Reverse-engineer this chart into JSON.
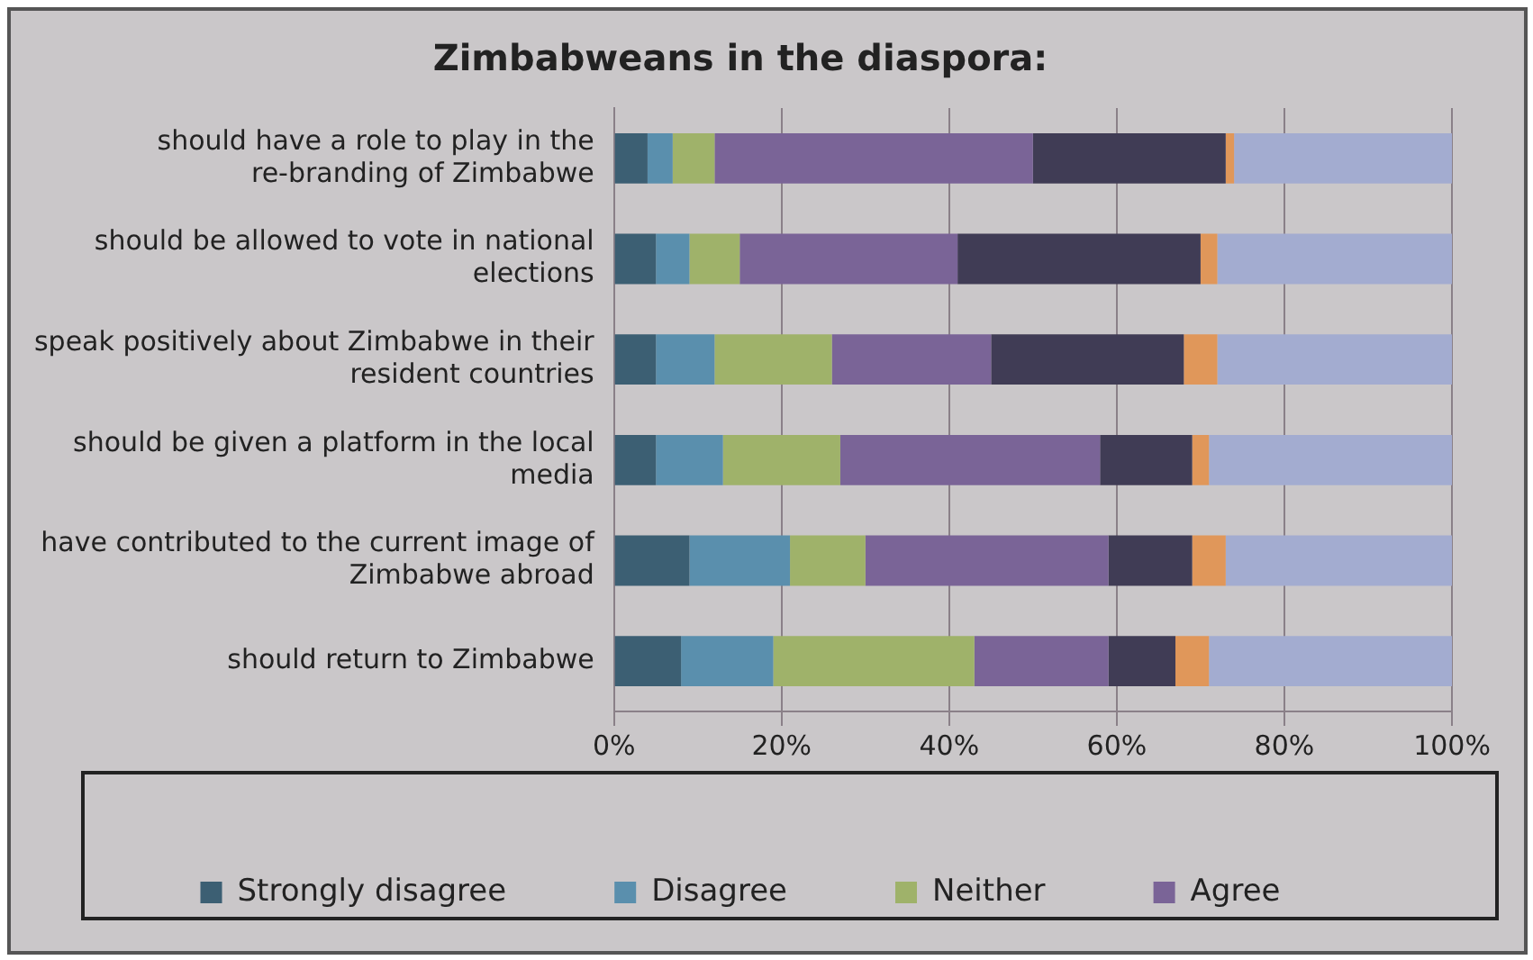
{
  "chart_data": {
    "type": "bar",
    "orientation": "horizontal",
    "stacked": true,
    "title": "Zimbabweans in the diaspora:",
    "categories": [
      "should have a role to play in the re-branding of Zimbabwe",
      "should be allowed to vote in national elections",
      "speak positively about Zimbabwe in their resident countries",
      "should be given a platform in the local media",
      "have contributed to the current image of Zimbabwe abroad",
      "should return to Zimbabwe"
    ],
    "series": [
      {
        "name": "Strongly disagree",
        "color": "#3c5f73",
        "values": [
          4,
          5,
          5,
          5,
          9,
          8
        ]
      },
      {
        "name": "Disagree",
        "color": "#5a8fad",
        "values": [
          3,
          4,
          7,
          8,
          12,
          11
        ]
      },
      {
        "name": "Neither",
        "color": "#9fb26a",
        "values": [
          5,
          6,
          14,
          14,
          9,
          24
        ]
      },
      {
        "name": "Agree",
        "color": "#7a6497",
        "values": [
          38,
          26,
          19,
          31,
          29,
          16
        ]
      },
      {
        "color": "#403c55",
        "values": [
          23,
          29,
          23,
          11,
          10,
          8
        ]
      },
      {
        "color": "#e0975a",
        "values": [
          1,
          2,
          4,
          2,
          4,
          4
        ]
      },
      {
        "color": "#a3acd0",
        "values": [
          26,
          28,
          28,
          29,
          27,
          29
        ]
      }
    ],
    "xlim": [
      0,
      100
    ],
    "xticks": [
      {
        "value": 0,
        "label": "0%"
      },
      {
        "value": 20,
        "label": "20%"
      },
      {
        "value": 40,
        "label": "40%"
      },
      {
        "value": 60,
        "label": "60%"
      },
      {
        "value": 80,
        "label": "80%"
      },
      {
        "value": 100,
        "label": "100%"
      }
    ],
    "grid": "x",
    "legend": "bottom"
  }
}
